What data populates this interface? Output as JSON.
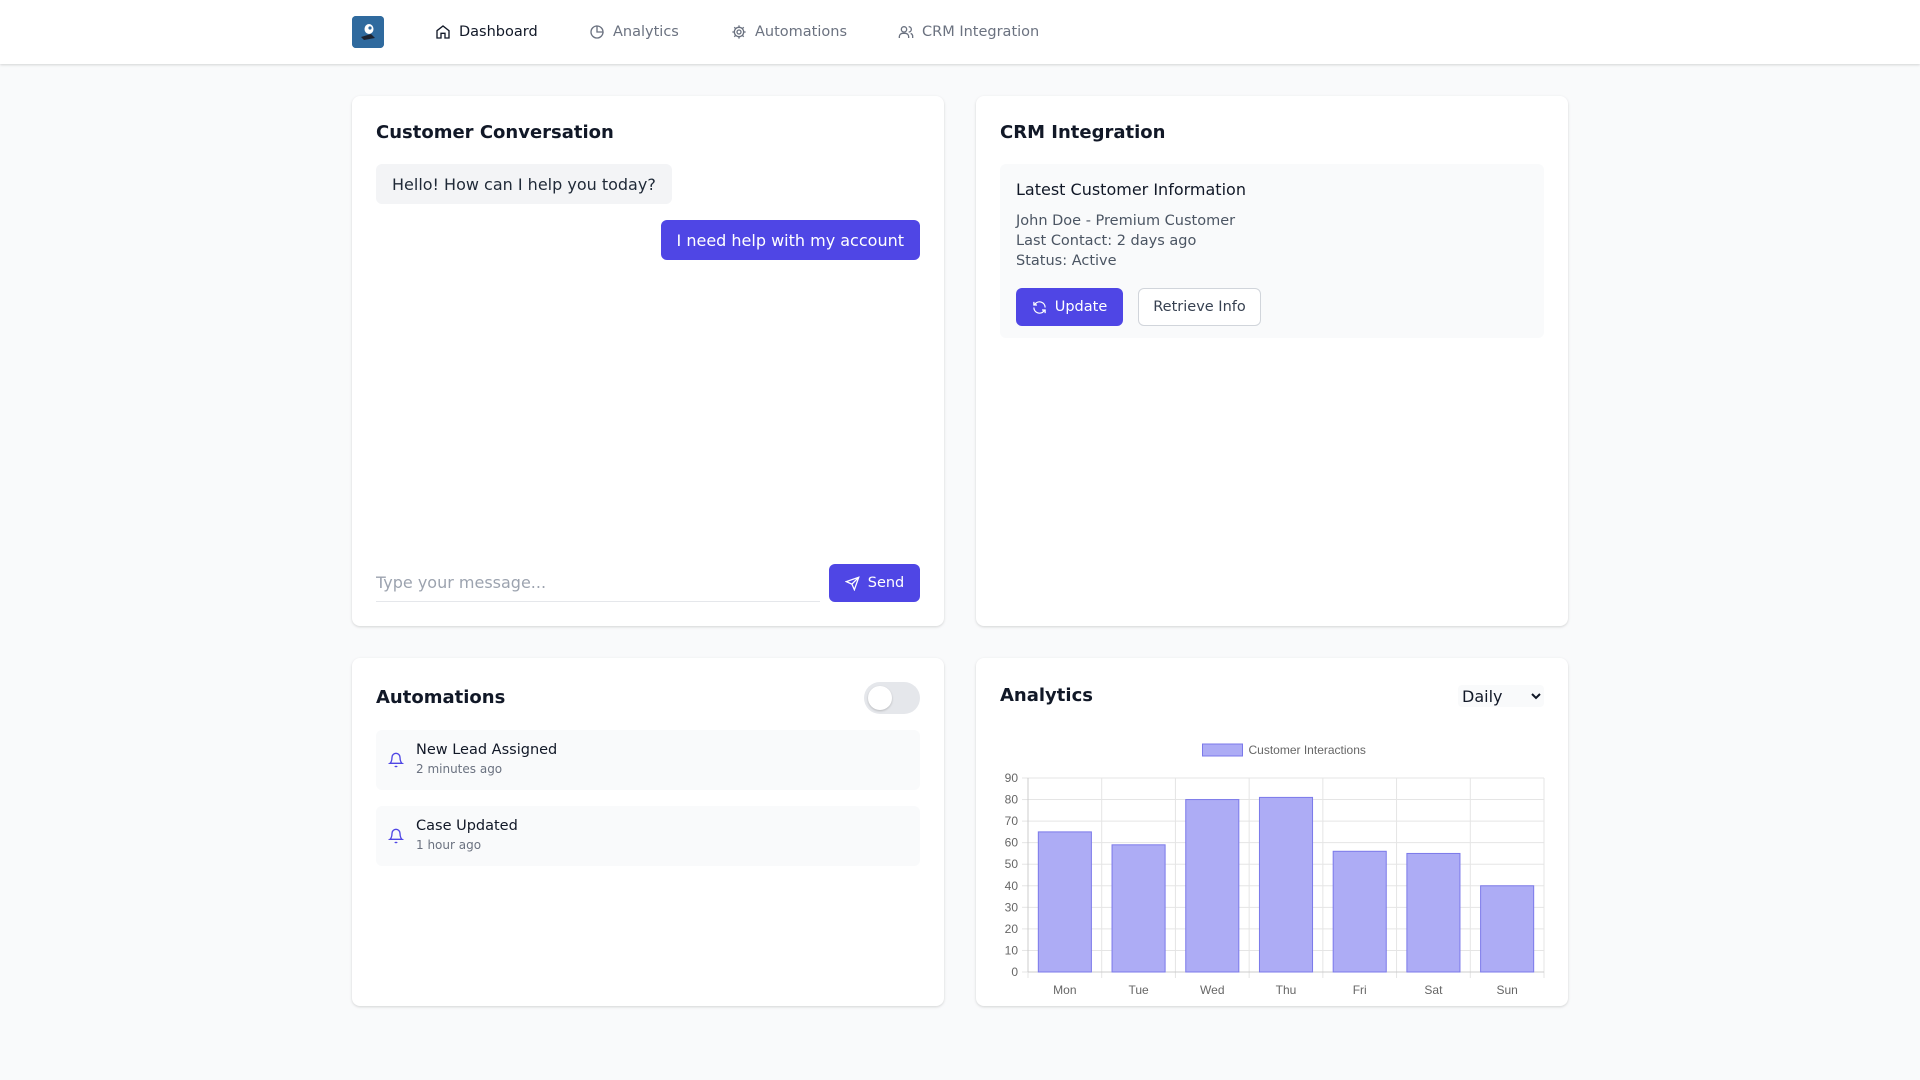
{
  "nav": {
    "items": [
      {
        "label": "Dashboard",
        "icon": "home-icon",
        "active": true
      },
      {
        "label": "Analytics",
        "icon": "pie-chart-icon",
        "active": false
      },
      {
        "label": "Automations",
        "icon": "gear-icon",
        "active": false
      },
      {
        "label": "CRM Integration",
        "icon": "users-icon",
        "active": false
      }
    ]
  },
  "conversation": {
    "title": "Customer Conversation",
    "messages": [
      {
        "from": "agent",
        "text": "Hello! How can I help you today?"
      },
      {
        "from": "user",
        "text": "I need help with my account"
      }
    ],
    "input_placeholder": "Type your message...",
    "input_value": "",
    "send_label": "Send"
  },
  "crm": {
    "title": "CRM Integration",
    "heading": "Latest Customer Information",
    "lines": [
      "John Doe - Premium Customer",
      "Last Contact: 2 days ago",
      "Status: Active"
    ],
    "update_label": "Update",
    "retrieve_label": "Retrieve Info"
  },
  "automations": {
    "title": "Automations",
    "enabled": false,
    "items": [
      {
        "title": "New Lead Assigned",
        "time": "2 minutes ago"
      },
      {
        "title": "Case Updated",
        "time": "1 hour ago"
      }
    ]
  },
  "analytics": {
    "title": "Analytics",
    "range_selected": "Daily"
  },
  "colors": {
    "primary": "#4f46e5",
    "bar_fill": "#adacf5",
    "bar_border": "#7b79ea"
  },
  "chart_data": {
    "type": "bar",
    "categories": [
      "Mon",
      "Tue",
      "Wed",
      "Thu",
      "Fri",
      "Sat",
      "Sun"
    ],
    "series": [
      {
        "name": "Customer Interactions",
        "values": [
          65,
          59,
          80,
          81,
          56,
          55,
          40
        ]
      }
    ],
    "ylim": [
      0,
      90
    ],
    "yticks": [
      0,
      10,
      20,
      30,
      40,
      50,
      60,
      70,
      80,
      90
    ],
    "grid": true,
    "legend": "top-center"
  }
}
